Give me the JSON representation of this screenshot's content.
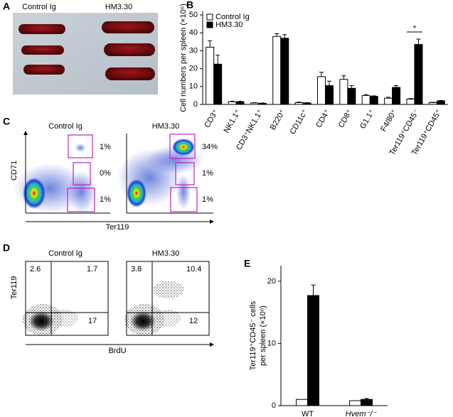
{
  "panel_a": {
    "letter": "A",
    "titles": [
      "Control Ig",
      "HM3.30"
    ]
  },
  "panel_c": {
    "letter": "C",
    "titles": [
      "Control Ig",
      "HM3.30"
    ],
    "y_label": "CD71",
    "x_label": "Ter119",
    "gates": [
      [
        "1%",
        "0%",
        "1%"
      ],
      [
        "34%",
        "1%",
        "1%"
      ]
    ]
  },
  "panel_d": {
    "letter": "D",
    "titles": [
      "Control Ig",
      "HM3.30"
    ],
    "y_label": "Ter119",
    "x_label": "BrdU",
    "quadrants": [
      [
        "2.6",
        "1.7",
        "17"
      ],
      [
        "3.8",
        "10.4",
        "12"
      ]
    ]
  },
  "chart_data": [
    {
      "type": "bar",
      "panel_label": "B",
      "ylabel": "Cell numbers per spleen (×10⁶)",
      "categories": [
        "CD3⁺",
        "NK1.1⁺",
        "CD3⁺NK1.1⁺",
        "B220⁺",
        "CD11c⁺",
        "CD4⁺",
        "CD8⁺",
        "G1.1⁺",
        "F4/80⁺",
        "Ter119⁺CD45⁻",
        "Ter119⁺CD45⁺"
      ],
      "series": [
        {
          "name": "Control Ig",
          "color": "#ffffff",
          "values": [
            32,
            1.5,
            0.8,
            38,
            1,
            15.5,
            14,
            5,
            3.5,
            3,
            1
          ],
          "errors": [
            3.5,
            0.3,
            0.2,
            1.5,
            0.3,
            2.5,
            2,
            0.5,
            0.5,
            0.3,
            0.2
          ]
        },
        {
          "name": "HM3.30",
          "color": "#000000",
          "values": [
            22.5,
            1.5,
            0.6,
            37,
            0.8,
            10.5,
            9,
            4.5,
            9.5,
            33.5,
            2
          ],
          "errors": [
            5,
            0.3,
            0.2,
            2,
            0.2,
            2.5,
            1.5,
            0.3,
            1,
            3,
            0.2
          ]
        }
      ],
      "ylim": [
        0,
        52
      ],
      "yticks": [
        0,
        10,
        20,
        30,
        40,
        50
      ],
      "annotation": "*",
      "legend": "top-left"
    },
    {
      "type": "bar",
      "panel_label": "E",
      "ylabel": [
        "Ter119⁺CD45⁻ cells",
        "per spleen (×10⁶)"
      ],
      "categories": [
        "WT",
        "Hvem⁻/⁻"
      ],
      "series": [
        {
          "color": "#ffffff",
          "values": [
            1,
            0.8
          ],
          "errors": [
            0,
            0
          ]
        },
        {
          "color": "#000000",
          "values": [
            17.7,
            1
          ],
          "errors": [
            1.7,
            0.15
          ]
        }
      ],
      "ylim": [
        0,
        22.5
      ],
      "yticks": [
        0,
        10,
        20
      ]
    }
  ]
}
